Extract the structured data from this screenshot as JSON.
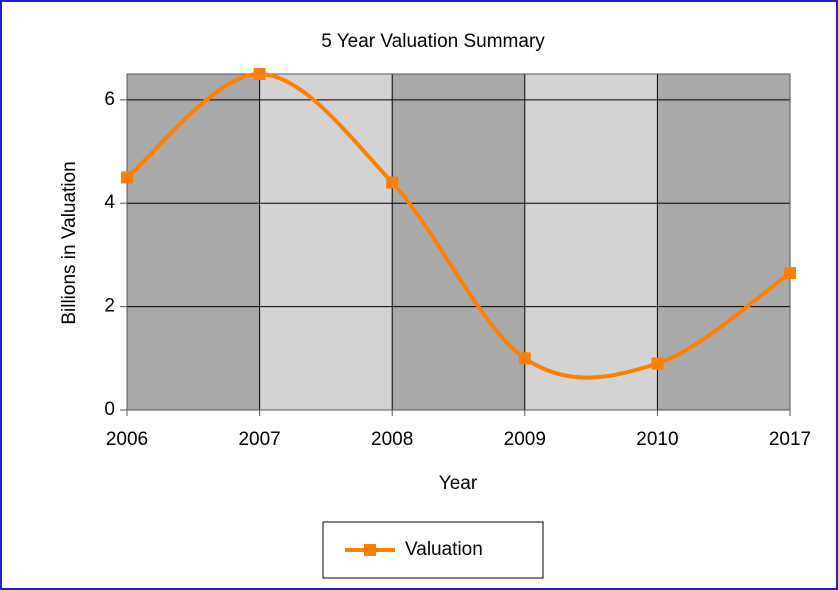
{
  "chart_data": {
    "type": "line",
    "title": "5 Year Valuation Summary",
    "x_label": "Year",
    "y_label": "Billions in Valuation",
    "categories": [
      "2006",
      "2007",
      "2008",
      "2009",
      "2010",
      "2017"
    ],
    "series": [
      {
        "name": "Valuation",
        "color": "#ff8000",
        "values": [
          4.5,
          6.5,
          4.4,
          1.0,
          0.9,
          2.65
        ]
      }
    ],
    "ylim": [
      0,
      6.5
    ],
    "yticks": [
      0,
      2,
      4,
      6
    ],
    "grid": true,
    "smooth": true,
    "legend": "bottom",
    "band_colors": [
      "#a9a9a9",
      "#d3d3d3"
    ]
  }
}
